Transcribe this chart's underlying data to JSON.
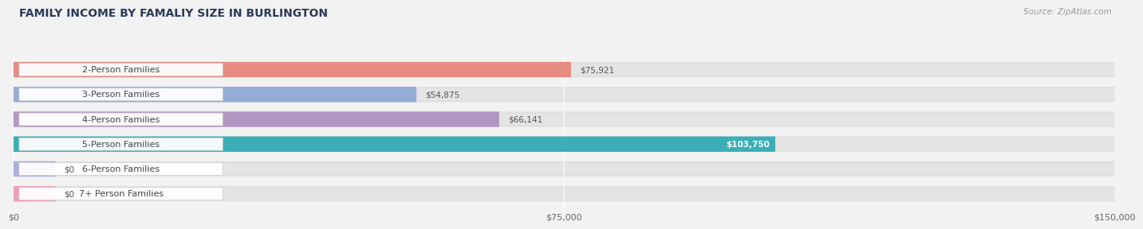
{
  "title": "FAMILY INCOME BY FAMALIY SIZE IN BURLINGTON",
  "source": "Source: ZipAtlas.com",
  "categories": [
    "2-Person Families",
    "3-Person Families",
    "4-Person Families",
    "5-Person Families",
    "6-Person Families",
    "7+ Person Families"
  ],
  "values": [
    75921,
    54875,
    66141,
    103750,
    0,
    0
  ],
  "bar_colors": [
    "#E8857A",
    "#8FA8D5",
    "#B090C0",
    "#2DAAB5",
    "#AAAADD",
    "#F099B5"
  ],
  "xlim_max": 150000,
  "xticks": [
    0,
    75000,
    150000
  ],
  "xtick_labels": [
    "$0",
    "$75,000",
    "$150,000"
  ],
  "fig_bg_color": "#f2f2f2",
  "bar_bg_color": "#e0e0e0",
  "bar_bg_color2": "#dcdcdc",
  "title_color": "#2a3a5a",
  "source_color": "#999999",
  "label_text_color": "#444444",
  "value_color_dark": "#555555",
  "value_color_light": "#ffffff",
  "title_fontsize": 10,
  "label_fontsize": 8,
  "value_fontsize": 7.5,
  "tick_fontsize": 8
}
